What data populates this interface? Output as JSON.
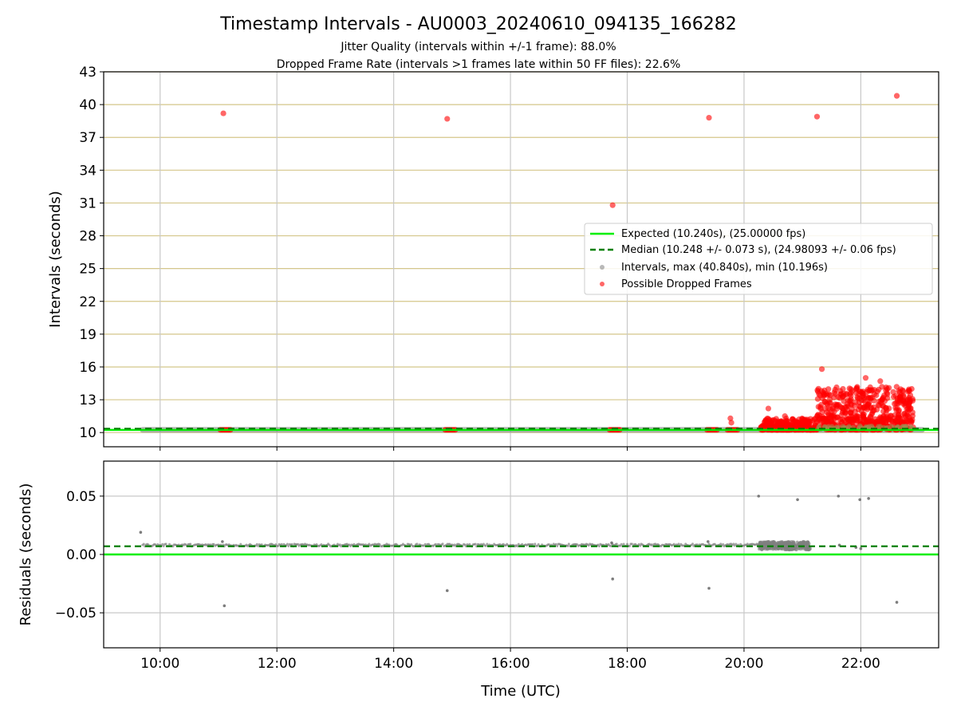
{
  "title": "Timestamp Intervals - AU0003_20240610_094135_166282",
  "subtitle_lines": [
    "Jitter Quality (intervals within +/-1 frame): 88.0%",
    "Dropped Frame Rate (intervals >1 frames late within 50 FF files): 22.6%"
  ],
  "colors": {
    "expected": "#00ee00",
    "median": "#007f00",
    "intervals": "#808080",
    "dropped": "#ff0000",
    "hgrid_top": "#d4c68a",
    "vgrid": "#c8c8c8"
  },
  "chart_data": [
    {
      "type": "scatter",
      "panel": "top",
      "ylabel": "Intervals (seconds)",
      "xlabel": "",
      "ylim": [
        8.7,
        43
      ],
      "xlim": [
        "09:02",
        "23:20"
      ],
      "yticks": [
        10,
        13,
        16,
        19,
        22,
        25,
        28,
        31,
        34,
        37,
        40,
        43
      ],
      "xticks": [
        "10:00",
        "12:00",
        "14:00",
        "16:00",
        "18:00",
        "20:00",
        "22:00"
      ],
      "grid": true,
      "legend_position": "center-right",
      "legend": [
        "Expected (10.240s), (25.00000 fps)",
        "Median (10.248 +/- 0.073 s), (24.98093 +/- 0.06 fps)",
        "Intervals, max (40.840s), min (10.196s)",
        "Possible Dropped Frames"
      ],
      "expected_y": 10.24,
      "median_y": 10.248,
      "intervals_band": {
        "x_start": "09:42",
        "x_end": "23:03",
        "y": 10.248
      },
      "dropped_clusters": [
        {
          "x_start": "11:02",
          "x_end": "11:13",
          "y": 10.25
        },
        {
          "x_start": "14:53",
          "x_end": "15:04",
          "y": 10.25
        },
        {
          "x_start": "17:42",
          "x_end": "17:53",
          "y": 10.25
        },
        {
          "x_start": "19:22",
          "x_end": "19:33",
          "y": 10.25
        },
        {
          "x_start": "19:43",
          "x_end": "19:54",
          "y": 10.25
        }
      ],
      "dropped_outliers": [
        {
          "x": "11:05",
          "y": 39.2
        },
        {
          "x": "14:55",
          "y": 38.7
        },
        {
          "x": "17:45",
          "y": 30.8
        },
        {
          "x": "19:24",
          "y": 38.8
        },
        {
          "x": "21:15",
          "y": 38.9
        },
        {
          "x": "22:37",
          "y": 40.8
        },
        {
          "x": "19:46",
          "y": 11.3
        },
        {
          "x": "19:47",
          "y": 10.9
        },
        {
          "x": "21:20",
          "y": 15.8
        },
        {
          "x": "22:05",
          "y": 15.0
        },
        {
          "x": "22:20",
          "y": 14.7
        },
        {
          "x": "22:39",
          "y": 13.8
        },
        {
          "x": "22:50",
          "y": 13.8
        },
        {
          "x": "20:25",
          "y": 12.2
        },
        {
          "x": "20:42",
          "y": 11.5
        }
      ],
      "dropped_dense_region": {
        "x_start": "20:17",
        "x_end": "22:54",
        "y_min": 10.25,
        "y_max": 14.4
      }
    },
    {
      "type": "scatter",
      "panel": "bottom",
      "ylabel": "Residuals (seconds)",
      "xlabel": "Time (UTC)",
      "ylim": [
        -0.08,
        0.08
      ],
      "xlim": [
        "09:02",
        "23:20"
      ],
      "yticks": [
        -0.05,
        0.0,
        0.05
      ],
      "ytick_labels": [
        "−0.05",
        "0.00",
        "0.05"
      ],
      "xticks": [
        "10:00",
        "12:00",
        "14:00",
        "16:00",
        "18:00",
        "20:00",
        "22:00"
      ],
      "grid": true,
      "expected_y": 0.0,
      "median_y": 0.007,
      "residual_band": {
        "x_start": "09:42",
        "x_end": "21:05",
        "y": 0.008
      },
      "residual_dense": {
        "x_start": "20:15",
        "x_end": "21:08",
        "y_min": 0.004,
        "y_max": 0.011
      },
      "residual_points": [
        {
          "x": "09:40",
          "y": 0.019
        },
        {
          "x": "11:06",
          "y": -0.044
        },
        {
          "x": "14:55",
          "y": -0.031
        },
        {
          "x": "17:45",
          "y": -0.021
        },
        {
          "x": "19:24",
          "y": -0.029
        },
        {
          "x": "20:15",
          "y": 0.05
        },
        {
          "x": "20:55",
          "y": 0.047
        },
        {
          "x": "21:37",
          "y": 0.05
        },
        {
          "x": "21:59",
          "y": 0.047
        },
        {
          "x": "22:08",
          "y": 0.048
        },
        {
          "x": "22:37",
          "y": -0.041
        },
        {
          "x": "21:38",
          "y": 0.008
        },
        {
          "x": "21:55",
          "y": 0.006
        },
        {
          "x": "22:00",
          "y": 0.005
        },
        {
          "x": "11:04",
          "y": 0.011
        },
        {
          "x": "17:44",
          "y": 0.01
        },
        {
          "x": "19:23",
          "y": 0.011
        }
      ]
    }
  ]
}
